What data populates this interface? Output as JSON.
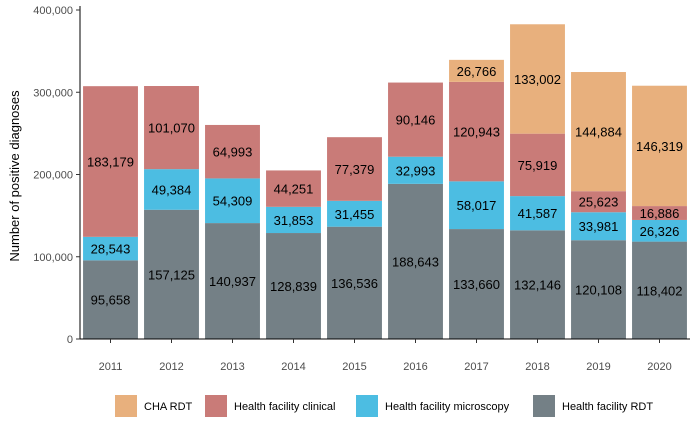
{
  "chart_data": {
    "type": "bar",
    "stacked": true,
    "ylabel": "Number of positive diagnoses",
    "xlabel": "",
    "ylim": [
      0,
      400000
    ],
    "yticks": [
      0,
      100000,
      200000,
      300000,
      400000
    ],
    "ytick_labels": [
      "0",
      "100,000",
      "200,000",
      "300,000",
      "400,000"
    ],
    "categories": [
      "2011",
      "2012",
      "2013",
      "2014",
      "2015",
      "2016",
      "2017",
      "2018",
      "2019",
      "2020"
    ],
    "legend_position": "bottom",
    "series": [
      {
        "name": "Health facility RDT",
        "color": "#748086",
        "values": [
          95658,
          157125,
          140937,
          128839,
          136536,
          188643,
          133660,
          132146,
          120108,
          118402
        ],
        "labels": [
          "95,658",
          "157,125",
          "140,937",
          "128,839",
          "136,536",
          "188,643",
          "133,660",
          "132,146",
          "120,108",
          "118,402"
        ]
      },
      {
        "name": "Health facility microscopy",
        "color": "#4cbde2",
        "values": [
          28543,
          49384,
          54309,
          31853,
          31455,
          32993,
          58017,
          41587,
          33981,
          26326
        ],
        "labels": [
          "28,543",
          "49,384",
          "54,309",
          "31,853",
          "31,455",
          "32,993",
          "58,017",
          "41,587",
          "33,981",
          "26,326"
        ]
      },
      {
        "name": "Health facility clinical",
        "color": "#c97b78",
        "values": [
          183179,
          101070,
          64993,
          44251,
          77379,
          90146,
          120943,
          75919,
          25623,
          16886
        ],
        "labels": [
          "183,179",
          "101,070",
          "64,993",
          "44,251",
          "77,379",
          "90,146",
          "120,943",
          "75,919",
          "25,623",
          "16,886"
        ]
      },
      {
        "name": "CHA RDT",
        "color": "#e8b07d",
        "values": [
          0,
          0,
          0,
          0,
          0,
          0,
          26766,
          133002,
          144884,
          146319
        ],
        "labels": [
          "",
          "",
          "",
          "",
          "",
          "",
          "26,766",
          "133,002",
          "144,884",
          "146,319"
        ]
      }
    ],
    "legend_order": [
      "CHA RDT",
      "Health facility clinical",
      "Health facility microscopy",
      "Health facility RDT"
    ]
  }
}
